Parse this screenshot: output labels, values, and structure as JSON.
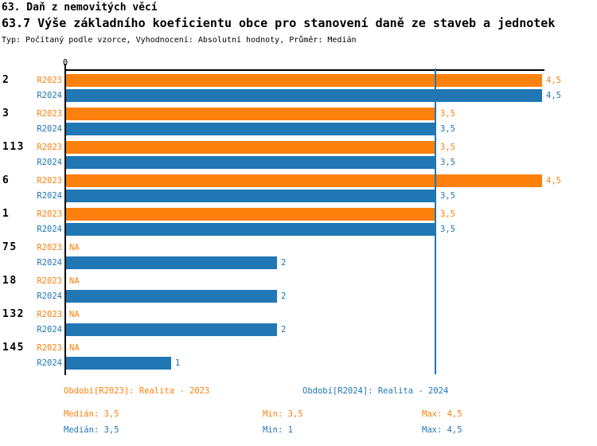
{
  "header": {
    "title": "63. Daň z nemovitých věcí",
    "subtitle": "63.7 Výše základního koeficientu obce pro stanovení daně ze staveb a jednotek",
    "meta": "Typ: Počítaný podle vzorce, Vyhodnocení: Absolutní hodnoty, Průměr: Medián"
  },
  "chart_data": {
    "type": "bar",
    "orientation": "horizontal",
    "title": "63.7 Výše základního koeficientu obce pro stanovení daně ze staveb a jednotek",
    "categories": [
      "2",
      "3",
      "113",
      "6",
      "1",
      "75",
      "18",
      "132",
      "145"
    ],
    "series": [
      {
        "name": "R2023",
        "legend": "Období[R2023]: Realita - 2023",
        "color": "#fd810d",
        "values": [
          4.5,
          3.5,
          3.5,
          4.5,
          3.5,
          null,
          null,
          null,
          null
        ],
        "value_labels": [
          "4,5",
          "3,5",
          "3,5",
          "4,5",
          "3,5",
          "NA",
          "NA",
          "NA",
          "NA"
        ],
        "stats": {
          "median": "Medián: 3,5",
          "min": "Min: 3,5",
          "max": "Max: 4,5"
        }
      },
      {
        "name": "R2024",
        "legend": "Období[R2024]: Realita - 2024",
        "color": "#2077b4",
        "values": [
          4.5,
          3.5,
          3.5,
          3.5,
          3.5,
          2,
          2,
          2,
          1
        ],
        "value_labels": [
          "4,5",
          "3,5",
          "3,5",
          "3,5",
          "3,5",
          "2",
          "2",
          "2",
          "1"
        ],
        "stats": {
          "median": "Medián: 3,5",
          "min": "Min: 1",
          "max": "Max: 4,5"
        }
      }
    ],
    "axis": {
      "x_min": 0,
      "x_max": 4.5,
      "zero_label": "0",
      "reference_line_value": 3.5,
      "reference_line_color": "#2077b4"
    },
    "grid": false,
    "legend_position": "bottom",
    "na_text": "NA"
  },
  "colors": {
    "r2023": "#fd810d",
    "r2024": "#2077b4",
    "axis": "#000000",
    "background": "#ffffff"
  }
}
